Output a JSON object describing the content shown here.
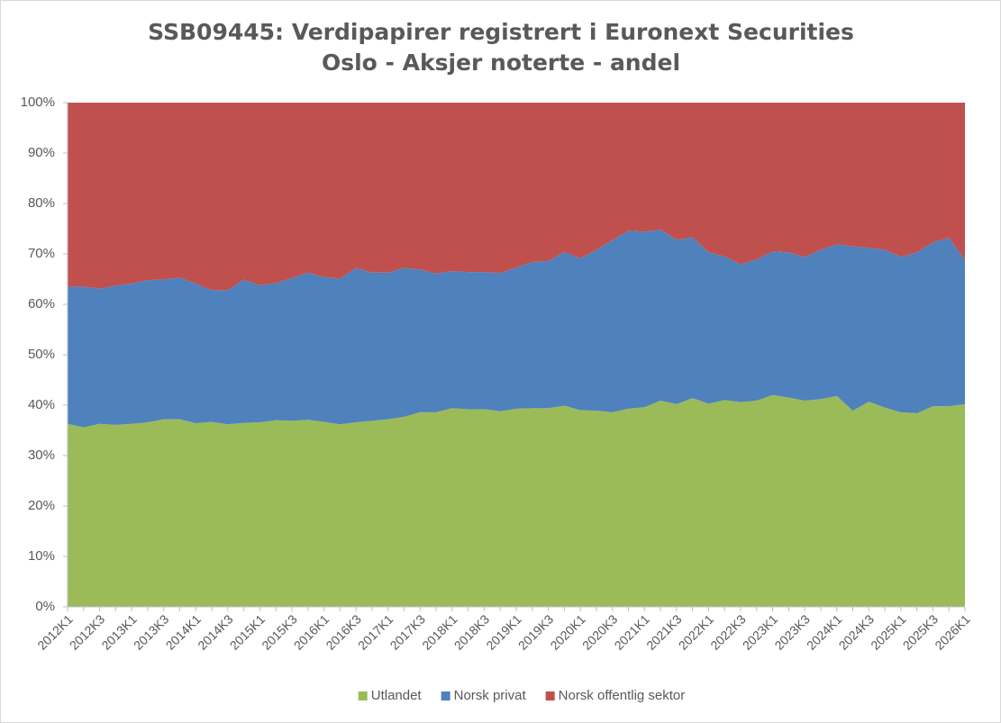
{
  "chart_data": {
    "type": "area",
    "stacked": true,
    "title": "SSB09445: Verdipapirer registrert i Euronext Securities Oslo - Aksjer noterte - andel",
    "categories": [
      "2012K1",
      null,
      "2012K3",
      null,
      "2013K1",
      null,
      "2013K3",
      null,
      "2014K1",
      null,
      "2014K3",
      null,
      "2015K1",
      null,
      "2015K3",
      null,
      "2016K1",
      null,
      "2016K3",
      null,
      "2017K1",
      null,
      "2017K3",
      null,
      "2018K1",
      null,
      "2018K3",
      null,
      "2019K1",
      null,
      "2019K3",
      null,
      "2020K1",
      null,
      "2020K3",
      null,
      "2021K1",
      null,
      "2021K3",
      null,
      "2022K1",
      null,
      "2022K3",
      null,
      "2023K1",
      null,
      "2023K3",
      null,
      "2024K1",
      null,
      "2024K3",
      null,
      "2025K1",
      null,
      "2025K3",
      null,
      "2026K1"
    ],
    "series": [
      {
        "name": "Utlandet",
        "color": "#9bbb59",
        "values": [
          36.3,
          35.6,
          36.3,
          36.1,
          36.3,
          36.6,
          37.2,
          37.2,
          36.4,
          36.7,
          36.2,
          36.5,
          36.6,
          37.0,
          36.9,
          37.1,
          36.7,
          36.2,
          36.6,
          36.9,
          37.2,
          37.7,
          38.6,
          38.6,
          39.4,
          39.2,
          39.2,
          38.8,
          39.3,
          39.4,
          39.4,
          39.9,
          39.0,
          38.9,
          38.6,
          39.3,
          39.6,
          40.9,
          40.2,
          41.4,
          40.3,
          41.0,
          40.6,
          40.9,
          42.0,
          41.5,
          40.9,
          41.2,
          41.8,
          38.9,
          40.7,
          39.5,
          38.6,
          38.4,
          39.8,
          39.8,
          40.2
        ]
      },
      {
        "name": "Norsk privat",
        "color": "#4f81bd",
        "values": [
          27.2,
          27.9,
          26.8,
          27.6,
          27.8,
          28.2,
          27.7,
          28.1,
          27.7,
          26.1,
          26.6,
          28.4,
          27.2,
          27.2,
          28.3,
          29.2,
          28.7,
          28.9,
          30.6,
          29.4,
          29.1,
          29.5,
          28.3,
          27.5,
          27.2,
          27.2,
          27.2,
          27.4,
          28.0,
          29.0,
          29.2,
          30.5,
          30.1,
          31.9,
          34.1,
          35.3,
          34.8,
          33.9,
          32.6,
          31.9,
          30.0,
          28.5,
          27.3,
          28.0,
          28.5,
          28.8,
          28.5,
          29.6,
          30.1,
          32.6,
          30.5,
          31.3,
          30.8,
          31.9,
          32.5,
          33.4,
          28.6
        ]
      },
      {
        "name": "Norsk offentlig sektor",
        "color": "#c0504d",
        "values": [
          36.5,
          36.5,
          36.9,
          36.3,
          35.9,
          35.2,
          35.1,
          34.7,
          35.9,
          37.2,
          37.2,
          35.1,
          36.2,
          35.8,
          34.8,
          33.7,
          34.6,
          34.9,
          32.8,
          33.7,
          33.7,
          32.8,
          33.1,
          33.9,
          33.4,
          33.6,
          33.6,
          33.8,
          32.7,
          31.6,
          31.4,
          29.6,
          30.9,
          29.2,
          27.3,
          25.4,
          25.6,
          25.2,
          27.2,
          26.7,
          29.7,
          30.5,
          32.1,
          31.1,
          29.5,
          29.7,
          30.6,
          29.2,
          28.1,
          28.5,
          28.8,
          29.2,
          30.6,
          29.7,
          27.7,
          26.8,
          31.2
        ]
      }
    ],
    "ylim": [
      0,
      100
    ],
    "yticks": [
      {
        "value": 0,
        "label": "0%"
      },
      {
        "value": 10,
        "label": "10%"
      },
      {
        "value": 20,
        "label": "20%"
      },
      {
        "value": 30,
        "label": "30%"
      },
      {
        "value": 40,
        "label": "40%"
      },
      {
        "value": 50,
        "label": "50%"
      },
      {
        "value": 60,
        "label": "60%"
      },
      {
        "value": 70,
        "label": "70%"
      },
      {
        "value": 80,
        "label": "80%"
      },
      {
        "value": 90,
        "label": "90%"
      },
      {
        "value": 100,
        "label": "100%"
      }
    ],
    "legend": "bottom"
  }
}
